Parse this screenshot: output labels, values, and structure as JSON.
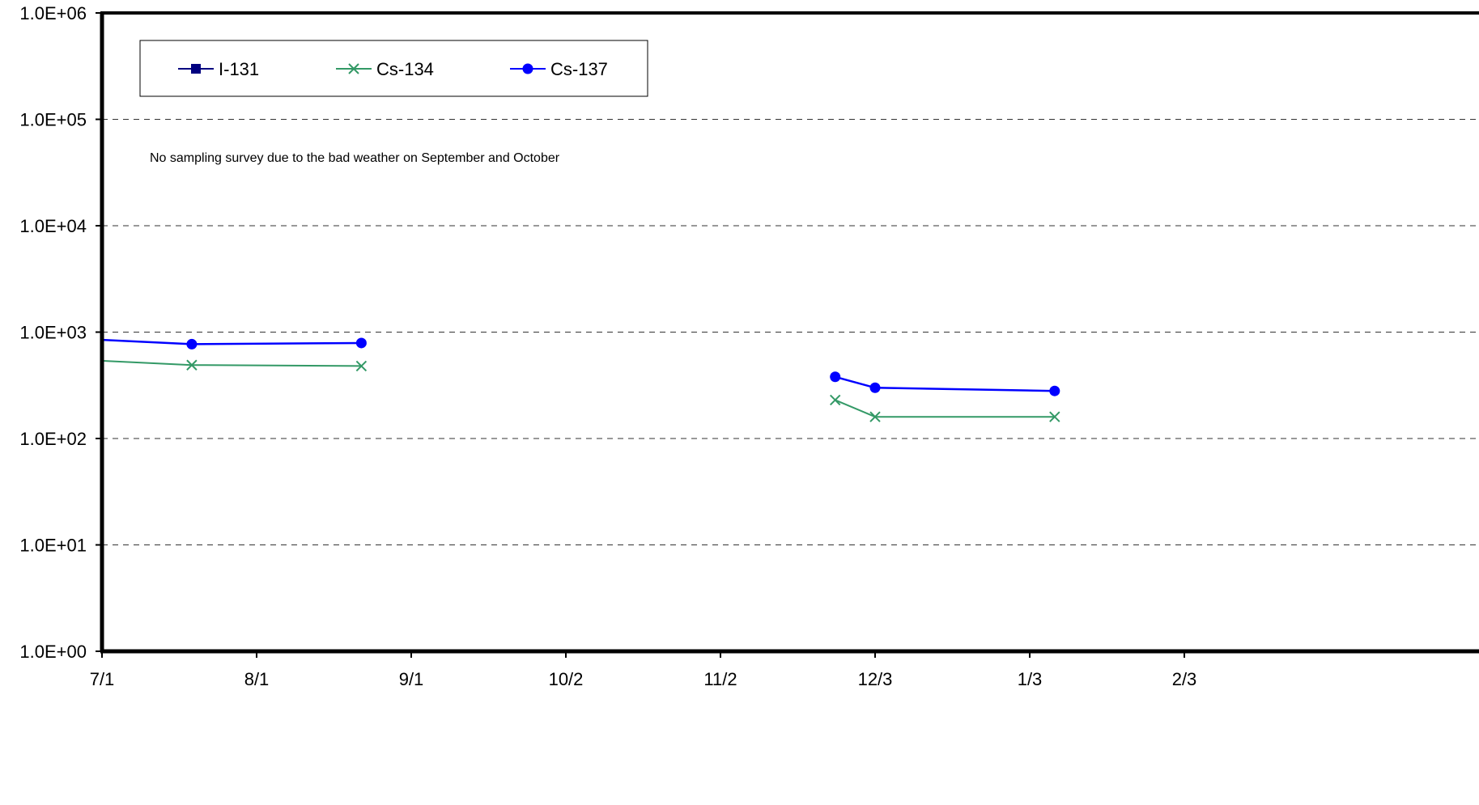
{
  "chart_data": {
    "type": "line",
    "y_scale": "log",
    "ylim": [
      1,
      1000000
    ],
    "xlim": [
      "2011-07-01",
      "2012-02-28"
    ],
    "y_ticks": [
      "1.0E+00",
      "1.0E+01",
      "1.0E+02",
      "1.0E+03",
      "1.0E+04",
      "1.0E+05",
      "1.0E+06"
    ],
    "x_ticks": [
      {
        "date": "2011-07-01",
        "label": "7/1"
      },
      {
        "date": "2011-08-01",
        "label": "8/1"
      },
      {
        "date": "2011-09-01",
        "label": "9/1"
      },
      {
        "date": "2011-10-02",
        "label": "10/2"
      },
      {
        "date": "2011-11-02",
        "label": "11/2"
      },
      {
        "date": "2011-12-03",
        "label": "12/3"
      },
      {
        "date": "2012-01-03",
        "label": "1/3"
      },
      {
        "date": "2012-02-03",
        "label": "2/3"
      }
    ],
    "grid": "horizontal-dashed",
    "legend_position": "top-left",
    "annotation": "No sampling survey due to the bad weather on September and October",
    "series": [
      {
        "name": "I-131",
        "color": "#000080",
        "marker": "square",
        "segments": []
      },
      {
        "name": "Cs-134",
        "color": "#339966",
        "marker": "x",
        "segments": [
          [
            {
              "x": "2011-06-30",
              "y": 540,
              "marker": false
            },
            {
              "x": "2011-07-19",
              "y": 490,
              "marker": true
            },
            {
              "x": "2011-08-22",
              "y": 480,
              "marker": true
            }
          ],
          [
            {
              "x": "2011-11-25",
              "y": 230,
              "marker": true
            },
            {
              "x": "2011-12-03",
              "y": 160,
              "marker": true
            },
            {
              "x": "2012-01-08",
              "y": 160,
              "marker": true
            }
          ]
        ]
      },
      {
        "name": "Cs-137",
        "color": "#0000ff",
        "marker": "circle",
        "segments": [
          [
            {
              "x": "2011-06-30",
              "y": 850,
              "marker": false
            },
            {
              "x": "2011-07-19",
              "y": 770,
              "marker": true
            },
            {
              "x": "2011-08-22",
              "y": 790,
              "marker": true
            }
          ],
          [
            {
              "x": "2011-11-25",
              "y": 380,
              "marker": true
            },
            {
              "x": "2011-12-03",
              "y": 300,
              "marker": true
            },
            {
              "x": "2012-01-08",
              "y": 280,
              "marker": true
            }
          ]
        ]
      }
    ]
  }
}
